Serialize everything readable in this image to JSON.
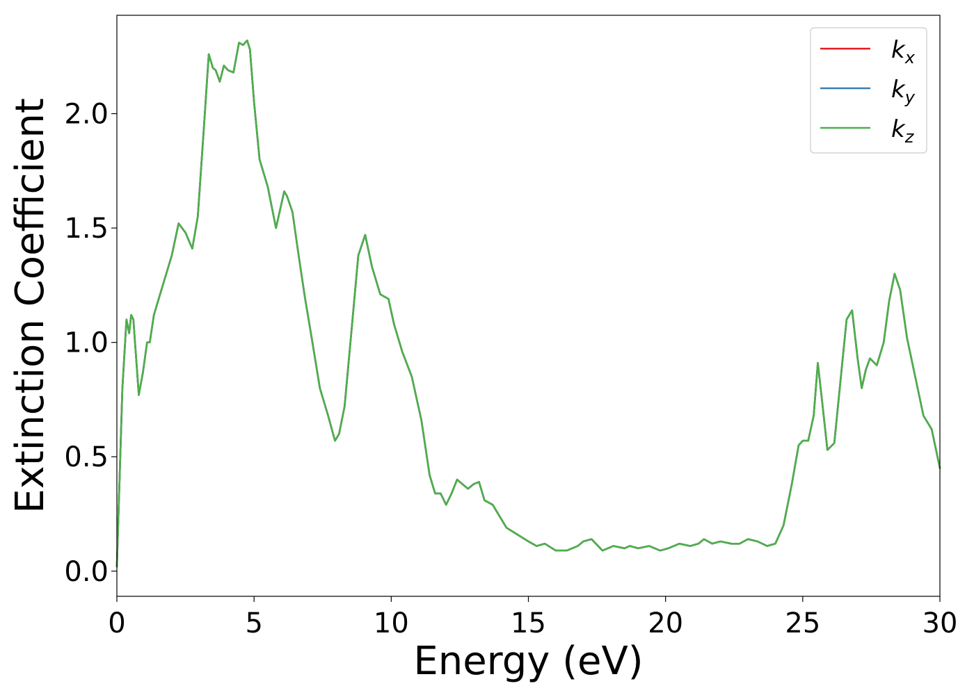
{
  "chart_data": {
    "type": "line",
    "title": "",
    "xlabel": "Energy (eV)",
    "ylabel": "Extinction Coefficient",
    "xlim": [
      0,
      30
    ],
    "ylim": [
      -0.11,
      2.43
    ],
    "xticks": [
      0,
      5,
      10,
      15,
      20,
      25,
      30
    ],
    "xtick_labels": [
      "0",
      "5",
      "10",
      "15",
      "20",
      "25",
      "30"
    ],
    "yticks": [
      0.0,
      0.5,
      1.0,
      1.5,
      2.0
    ],
    "ytick_labels": [
      "0.0",
      "0.5",
      "1.0",
      "1.5",
      "2.0"
    ],
    "grid": false,
    "legend_position": "top-right",
    "x": [
      0,
      0.2,
      0.35,
      0.45,
      0.52,
      0.6,
      0.8,
      0.95,
      1.1,
      1.2,
      1.35,
      1.55,
      1.8,
      2.0,
      2.25,
      2.5,
      2.75,
      2.95,
      3.15,
      3.35,
      3.5,
      3.6,
      3.75,
      3.9,
      4.05,
      4.25,
      4.45,
      4.6,
      4.75,
      4.85,
      5.0,
      5.2,
      5.5,
      5.8,
      5.95,
      6.1,
      6.2,
      6.4,
      6.6,
      6.85,
      7.1,
      7.4,
      7.7,
      7.95,
      8.1,
      8.3,
      8.55,
      8.8,
      9.05,
      9.3,
      9.6,
      9.9,
      10.1,
      10.4,
      10.75,
      11.1,
      11.4,
      11.6,
      11.8,
      12.0,
      12.2,
      12.4,
      12.6,
      12.8,
      13.0,
      13.2,
      13.4,
      13.7,
      13.95,
      14.2,
      14.6,
      15.0,
      15.3,
      15.6,
      16.0,
      16.4,
      16.8,
      17.0,
      17.3,
      17.7,
      18.1,
      18.5,
      18.7,
      19.0,
      19.4,
      19.8,
      20.1,
      20.5,
      20.9,
      21.2,
      21.4,
      21.7,
      22.0,
      22.4,
      22.7,
      23.0,
      23.35,
      23.7,
      24.0,
      24.3,
      24.6,
      24.85,
      25.0,
      25.2,
      25.4,
      25.55,
      25.7,
      25.9,
      26.15,
      26.4,
      26.6,
      26.8,
      27.0,
      27.15,
      27.3,
      27.45,
      27.7,
      27.95,
      28.15,
      28.35,
      28.55,
      28.8,
      29.1,
      29.4,
      29.7,
      30.0
    ],
    "series": [
      {
        "name": "k_x",
        "color": "#e41a1c",
        "values": [
          0.02,
          0.8,
          1.1,
          1.04,
          1.12,
          1.1,
          0.77,
          0.87,
          1.0,
          1.0,
          1.12,
          1.2,
          1.3,
          1.38,
          1.52,
          1.48,
          1.41,
          1.55,
          1.9,
          2.26,
          2.2,
          2.19,
          2.14,
          2.21,
          2.19,
          2.18,
          2.31,
          2.3,
          2.32,
          2.28,
          2.05,
          1.8,
          1.68,
          1.5,
          1.58,
          1.66,
          1.64,
          1.57,
          1.4,
          1.2,
          1.02,
          0.8,
          0.68,
          0.57,
          0.6,
          0.72,
          1.05,
          1.38,
          1.47,
          1.33,
          1.21,
          1.19,
          1.08,
          0.96,
          0.85,
          0.66,
          0.42,
          0.34,
          0.34,
          0.29,
          0.34,
          0.4,
          0.38,
          0.36,
          0.38,
          0.39,
          0.31,
          0.29,
          0.24,
          0.19,
          0.16,
          0.13,
          0.11,
          0.12,
          0.09,
          0.09,
          0.11,
          0.13,
          0.14,
          0.09,
          0.11,
          0.1,
          0.11,
          0.1,
          0.11,
          0.09,
          0.1,
          0.12,
          0.11,
          0.12,
          0.14,
          0.12,
          0.13,
          0.12,
          0.12,
          0.14,
          0.13,
          0.11,
          0.12,
          0.2,
          0.38,
          0.55,
          0.57,
          0.57,
          0.68,
          0.91,
          0.75,
          0.53,
          0.56,
          0.86,
          1.1,
          1.14,
          0.93,
          0.8,
          0.88,
          0.93,
          0.9,
          1.0,
          1.18,
          1.3,
          1.23,
          1.02,
          0.85,
          0.68,
          0.62,
          0.45
        ]
      },
      {
        "name": "k_y",
        "color": "#377eb8",
        "values": [
          0.02,
          0.8,
          1.1,
          1.04,
          1.12,
          1.1,
          0.77,
          0.87,
          1.0,
          1.0,
          1.12,
          1.2,
          1.3,
          1.38,
          1.52,
          1.48,
          1.41,
          1.55,
          1.9,
          2.26,
          2.2,
          2.19,
          2.14,
          2.21,
          2.19,
          2.18,
          2.31,
          2.3,
          2.32,
          2.28,
          2.05,
          1.8,
          1.68,
          1.5,
          1.58,
          1.66,
          1.64,
          1.57,
          1.4,
          1.2,
          1.02,
          0.8,
          0.68,
          0.57,
          0.6,
          0.72,
          1.05,
          1.38,
          1.47,
          1.33,
          1.21,
          1.19,
          1.08,
          0.96,
          0.85,
          0.66,
          0.42,
          0.34,
          0.34,
          0.29,
          0.34,
          0.4,
          0.38,
          0.36,
          0.38,
          0.39,
          0.31,
          0.29,
          0.24,
          0.19,
          0.16,
          0.13,
          0.11,
          0.12,
          0.09,
          0.09,
          0.11,
          0.13,
          0.14,
          0.09,
          0.11,
          0.1,
          0.11,
          0.1,
          0.11,
          0.09,
          0.1,
          0.12,
          0.11,
          0.12,
          0.14,
          0.12,
          0.13,
          0.12,
          0.12,
          0.14,
          0.13,
          0.11,
          0.12,
          0.2,
          0.38,
          0.55,
          0.57,
          0.57,
          0.68,
          0.91,
          0.75,
          0.53,
          0.56,
          0.86,
          1.1,
          1.14,
          0.93,
          0.8,
          0.88,
          0.93,
          0.9,
          1.0,
          1.18,
          1.3,
          1.23,
          1.02,
          0.85,
          0.68,
          0.62,
          0.45
        ]
      },
      {
        "name": "k_z",
        "color": "#4daf4a",
        "values": [
          0.02,
          0.8,
          1.1,
          1.04,
          1.12,
          1.1,
          0.77,
          0.87,
          1.0,
          1.0,
          1.12,
          1.2,
          1.3,
          1.38,
          1.52,
          1.48,
          1.41,
          1.55,
          1.9,
          2.26,
          2.2,
          2.19,
          2.14,
          2.21,
          2.19,
          2.18,
          2.31,
          2.3,
          2.32,
          2.28,
          2.05,
          1.8,
          1.68,
          1.5,
          1.58,
          1.66,
          1.64,
          1.57,
          1.4,
          1.2,
          1.02,
          0.8,
          0.68,
          0.57,
          0.6,
          0.72,
          1.05,
          1.38,
          1.47,
          1.33,
          1.21,
          1.19,
          1.08,
          0.96,
          0.85,
          0.66,
          0.42,
          0.34,
          0.34,
          0.29,
          0.34,
          0.4,
          0.38,
          0.36,
          0.38,
          0.39,
          0.31,
          0.29,
          0.24,
          0.19,
          0.16,
          0.13,
          0.11,
          0.12,
          0.09,
          0.09,
          0.11,
          0.13,
          0.14,
          0.09,
          0.11,
          0.1,
          0.11,
          0.1,
          0.11,
          0.09,
          0.1,
          0.12,
          0.11,
          0.12,
          0.14,
          0.12,
          0.13,
          0.12,
          0.12,
          0.14,
          0.13,
          0.11,
          0.12,
          0.2,
          0.38,
          0.55,
          0.57,
          0.57,
          0.68,
          0.91,
          0.75,
          0.53,
          0.56,
          0.86,
          1.1,
          1.14,
          0.93,
          0.8,
          0.88,
          0.93,
          0.9,
          1.0,
          1.18,
          1.3,
          1.23,
          1.02,
          0.85,
          0.68,
          0.62,
          0.45
        ]
      }
    ],
    "legend": [
      {
        "base": "k",
        "sub": "x",
        "color": "#e41a1c"
      },
      {
        "base": "k",
        "sub": "y",
        "color": "#377eb8"
      },
      {
        "base": "k",
        "sub": "z",
        "color": "#4daf4a"
      }
    ]
  }
}
